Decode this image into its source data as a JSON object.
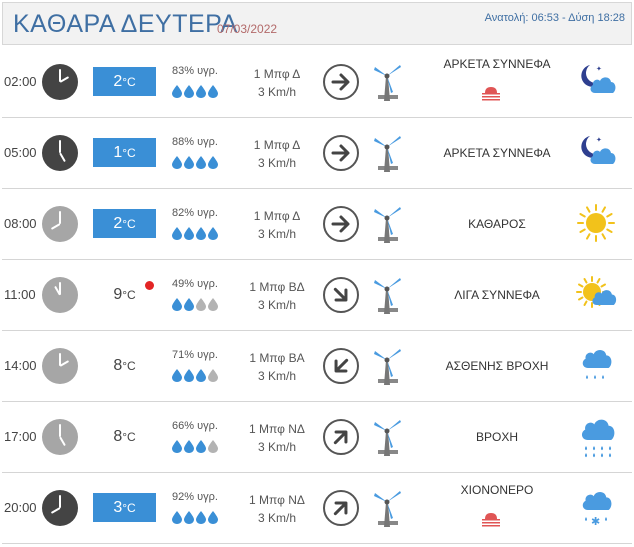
{
  "header": {
    "title": "ΚΑΘΑΡΑ ΔΕΥΤΕΡΑ",
    "date": "07/03/2022",
    "sun": "Ανατολή: 06:53  - Δύση 18:28"
  },
  "rows": [
    {
      "time": "02:00",
      "clock": "dark",
      "temp": "2",
      "deg": "°C",
      "temp_style": "filled",
      "humidity": "83% υγρ.",
      "drops": 4,
      "wind_line1": "1 Μπφ Δ",
      "wind_line2": "3 Km/h",
      "arrow": "right",
      "desc": "ΑΡΚΕΤΑ ΣΥΝΝΕΦΑ",
      "haze": true,
      "icon": "moon-cloud-icon"
    },
    {
      "time": "05:00",
      "clock": "dark",
      "temp": "1",
      "deg": "°C",
      "temp_style": "filled",
      "humidity": "88% υγρ.",
      "drops": 4,
      "wind_line1": "1 Μπφ Δ",
      "wind_line2": "3 Km/h",
      "arrow": "right",
      "desc": "ΑΡΚΕΤΑ ΣΥΝΝΕΦΑ",
      "haze": false,
      "icon": "moon-cloud-icon"
    },
    {
      "time": "08:00",
      "clock": "light",
      "temp": "2",
      "deg": "°C",
      "temp_style": "filled",
      "humidity": "82% υγρ.",
      "drops": 4,
      "wind_line1": "1 Μπφ Δ",
      "wind_line2": "3 Km/h",
      "arrow": "right",
      "desc": "ΚΑΘΑΡΟΣ",
      "haze": false,
      "icon": "sun-icon"
    },
    {
      "time": "11:00",
      "clock": "light",
      "temp": "9",
      "deg": "°C",
      "temp_style": "plain",
      "hot": true,
      "humidity": "49% υγρ.",
      "drops": 2,
      "wind_line1": "1 Μπφ ΒΔ",
      "wind_line2": "3 Km/h",
      "arrow": "down-right",
      "desc": "ΛΙΓΑ ΣΥΝΝΕΦΑ",
      "haze": false,
      "icon": "sun-cloud-icon"
    },
    {
      "time": "14:00",
      "clock": "light",
      "temp": "8",
      "deg": "°C",
      "temp_style": "plain",
      "humidity": "71% υγρ.",
      "drops": 3,
      "wind_line1": "1 Μπφ ΒΑ",
      "wind_line2": "3 Km/h",
      "arrow": "down-left",
      "desc": "ΑΣΘΕΝΗΣ ΒΡΟΧΗ",
      "haze": false,
      "icon": "light-rain-icon"
    },
    {
      "time": "17:00",
      "clock": "light",
      "temp": "8",
      "deg": "°C",
      "temp_style": "plain",
      "humidity": "66% υγρ.",
      "drops": 3,
      "wind_line1": "1 Μπφ ΝΔ",
      "wind_line2": "3 Km/h",
      "arrow": "up-right",
      "desc": "ΒΡΟΧΗ",
      "haze": false,
      "icon": "rain-icon"
    },
    {
      "time": "20:00",
      "clock": "dark",
      "temp": "3",
      "deg": "°C",
      "temp_style": "filled",
      "humidity": "92% υγρ.",
      "drops": 4,
      "wind_line1": "1 Μπφ ΝΔ",
      "wind_line2": "3 Km/h",
      "arrow": "up-right",
      "desc": "ΧΙΟΝΟΝΕΡΟ",
      "haze": true,
      "icon": "sleet-icon"
    }
  ],
  "colors": {
    "title": "#3f6fa3",
    "date": "#b36a6a",
    "temp_fill": "#3a8fd6",
    "drop_full": "#3a8fd6",
    "drop_empty": "#b3b3b3",
    "hot_dot": "#e32525",
    "haze": "#e05555",
    "sun": "#f2c21b",
    "cloud": "#4a9be0",
    "moon": "#2e3f8f"
  }
}
